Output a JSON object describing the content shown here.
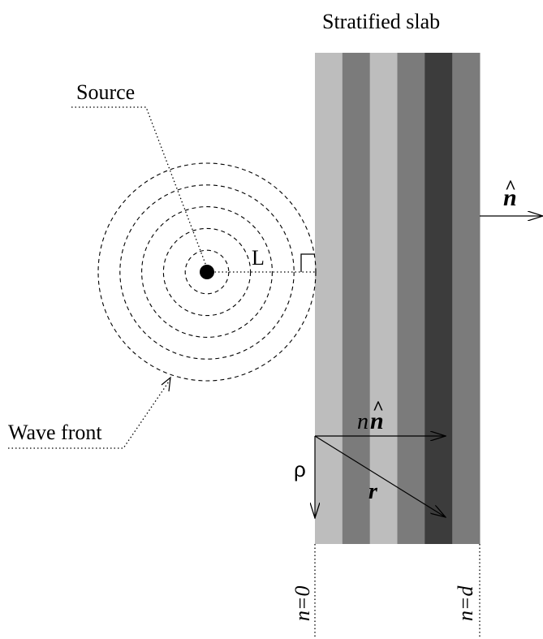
{
  "title": "Stratified slab",
  "labels": {
    "source": "Source",
    "wave_front": "Wave front",
    "distance": "L",
    "normal_vector": "n",
    "hat": "^",
    "scaled_normal_coef": "n",
    "rho": "ρ",
    "position_vector": "r",
    "boundary_start": "n=0",
    "boundary_end": "n=d"
  },
  "slab": {
    "layer_colors": [
      "#bdbdbd",
      "#7b7b7b",
      "#bdbdbd",
      "#7b7b7b",
      "#3c3c3c",
      "#7b7b7b"
    ]
  },
  "wave_front_count": 5
}
